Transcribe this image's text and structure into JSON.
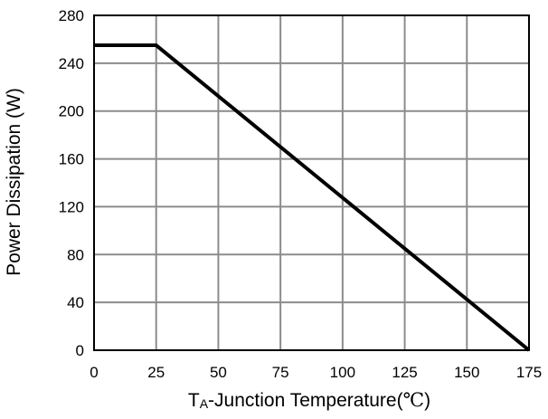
{
  "chart_data": {
    "type": "line",
    "xlabel_main": "T",
    "xlabel_sub": "A",
    "xlabel_rest": "-Junction Temperature(",
    "xlabel_unit": "℃",
    "xlabel_close": ")",
    "ylabel": "Power Dissipation (W)",
    "xlim": [
      0,
      175
    ],
    "ylim": [
      0,
      280
    ],
    "x_ticks": [
      0,
      25,
      50,
      75,
      100,
      125,
      150,
      175
    ],
    "y_ticks": [
      0,
      40,
      80,
      120,
      160,
      200,
      240,
      280
    ],
    "grid": true,
    "series": [
      {
        "x": [
          0,
          25,
          175
        ],
        "y": [
          255,
          255,
          0
        ]
      }
    ],
    "line_color": "#000000",
    "grid_color": "#8c8c8c"
  }
}
